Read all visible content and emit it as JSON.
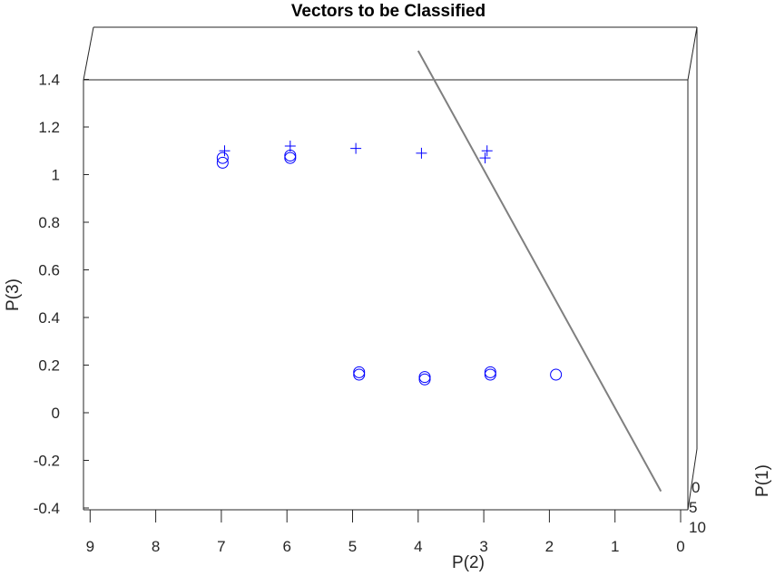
{
  "chart_data": {
    "type": "scatter",
    "title": "Vectors to be Classified",
    "xlabel": "P(2)",
    "ylabel": "P(3)",
    "zlabel": "P(1)",
    "x_ticks": [
      "9",
      "8",
      "7",
      "6",
      "5",
      "4",
      "3",
      "2",
      "1",
      "0"
    ],
    "y_ticks": [
      "1.4",
      "1.2",
      "1",
      "0.8",
      "0.6",
      "0.4",
      "0.2",
      "0",
      "-0.2",
      "-0.4"
    ],
    "z_ticks": [
      "0",
      "5",
      "10"
    ],
    "xlim": [
      9.1,
      0
    ],
    "ylim": [
      -0.4,
      1.4
    ],
    "colors": {
      "markers": "#0000ff",
      "plane": "#7f7f7f",
      "axes": "#262626"
    },
    "series": [
      {
        "marker": "plus",
        "points": [
          {
            "x": 6.95,
            "y": 1.1
          },
          {
            "x": 5.95,
            "y": 1.12
          },
          {
            "x": 4.95,
            "y": 1.11
          },
          {
            "x": 3.95,
            "y": 1.09
          },
          {
            "x": 2.95,
            "y": 1.1
          },
          {
            "x": 2.98,
            "y": 1.07
          }
        ]
      },
      {
        "marker": "circle",
        "points": [
          {
            "x": 6.98,
            "y": 1.07
          },
          {
            "x": 6.98,
            "y": 1.05
          },
          {
            "x": 5.95,
            "y": 1.08
          },
          {
            "x": 5.95,
            "y": 1.07
          },
          {
            "x": 4.9,
            "y": 0.17
          },
          {
            "x": 4.9,
            "y": 0.16
          },
          {
            "x": 3.9,
            "y": 0.15
          },
          {
            "x": 3.9,
            "y": 0.14
          },
          {
            "x": 2.9,
            "y": 0.17
          },
          {
            "x": 2.9,
            "y": 0.16
          },
          {
            "x": 1.9,
            "y": 0.16
          }
        ]
      }
    ],
    "decision_boundary": [
      {
        "x": 4.0,
        "y": 1.52
      },
      {
        "x": 0.3,
        "y": -0.33
      }
    ]
  }
}
